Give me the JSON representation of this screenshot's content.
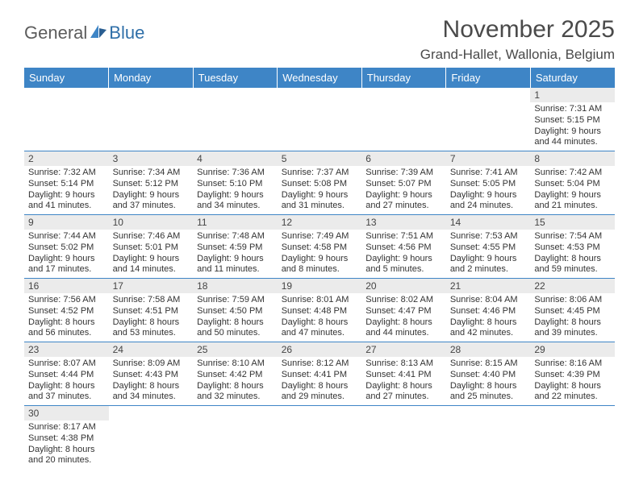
{
  "logo": {
    "part1": "General",
    "part2": "Blue"
  },
  "header": {
    "month_title": "November 2025",
    "location": "Grand-Hallet, Wallonia, Belgium"
  },
  "day_labels": [
    "Sunday",
    "Monday",
    "Tuesday",
    "Wednesday",
    "Thursday",
    "Friday",
    "Saturday"
  ],
  "colors": {
    "header_bg": "#3e85c6",
    "header_fg": "#ffffff",
    "daynum_bg": "#ebebeb",
    "row_border": "#3e85c6",
    "text": "#333333"
  },
  "weeks": [
    [
      null,
      null,
      null,
      null,
      null,
      null,
      {
        "n": "1",
        "sr": "7:31 AM",
        "ss": "5:15 PM",
        "dl": "9 hours and 44 minutes."
      }
    ],
    [
      {
        "n": "2",
        "sr": "7:32 AM",
        "ss": "5:14 PM",
        "dl": "9 hours and 41 minutes."
      },
      {
        "n": "3",
        "sr": "7:34 AM",
        "ss": "5:12 PM",
        "dl": "9 hours and 37 minutes."
      },
      {
        "n": "4",
        "sr": "7:36 AM",
        "ss": "5:10 PM",
        "dl": "9 hours and 34 minutes."
      },
      {
        "n": "5",
        "sr": "7:37 AM",
        "ss": "5:08 PM",
        "dl": "9 hours and 31 minutes."
      },
      {
        "n": "6",
        "sr": "7:39 AM",
        "ss": "5:07 PM",
        "dl": "9 hours and 27 minutes."
      },
      {
        "n": "7",
        "sr": "7:41 AM",
        "ss": "5:05 PM",
        "dl": "9 hours and 24 minutes."
      },
      {
        "n": "8",
        "sr": "7:42 AM",
        "ss": "5:04 PM",
        "dl": "9 hours and 21 minutes."
      }
    ],
    [
      {
        "n": "9",
        "sr": "7:44 AM",
        "ss": "5:02 PM",
        "dl": "9 hours and 17 minutes."
      },
      {
        "n": "10",
        "sr": "7:46 AM",
        "ss": "5:01 PM",
        "dl": "9 hours and 14 minutes."
      },
      {
        "n": "11",
        "sr": "7:48 AM",
        "ss": "4:59 PM",
        "dl": "9 hours and 11 minutes."
      },
      {
        "n": "12",
        "sr": "7:49 AM",
        "ss": "4:58 PM",
        "dl": "9 hours and 8 minutes."
      },
      {
        "n": "13",
        "sr": "7:51 AM",
        "ss": "4:56 PM",
        "dl": "9 hours and 5 minutes."
      },
      {
        "n": "14",
        "sr": "7:53 AM",
        "ss": "4:55 PM",
        "dl": "9 hours and 2 minutes."
      },
      {
        "n": "15",
        "sr": "7:54 AM",
        "ss": "4:53 PM",
        "dl": "8 hours and 59 minutes."
      }
    ],
    [
      {
        "n": "16",
        "sr": "7:56 AM",
        "ss": "4:52 PM",
        "dl": "8 hours and 56 minutes."
      },
      {
        "n": "17",
        "sr": "7:58 AM",
        "ss": "4:51 PM",
        "dl": "8 hours and 53 minutes."
      },
      {
        "n": "18",
        "sr": "7:59 AM",
        "ss": "4:50 PM",
        "dl": "8 hours and 50 minutes."
      },
      {
        "n": "19",
        "sr": "8:01 AM",
        "ss": "4:48 PM",
        "dl": "8 hours and 47 minutes."
      },
      {
        "n": "20",
        "sr": "8:02 AM",
        "ss": "4:47 PM",
        "dl": "8 hours and 44 minutes."
      },
      {
        "n": "21",
        "sr": "8:04 AM",
        "ss": "4:46 PM",
        "dl": "8 hours and 42 minutes."
      },
      {
        "n": "22",
        "sr": "8:06 AM",
        "ss": "4:45 PM",
        "dl": "8 hours and 39 minutes."
      }
    ],
    [
      {
        "n": "23",
        "sr": "8:07 AM",
        "ss": "4:44 PM",
        "dl": "8 hours and 37 minutes."
      },
      {
        "n": "24",
        "sr": "8:09 AM",
        "ss": "4:43 PM",
        "dl": "8 hours and 34 minutes."
      },
      {
        "n": "25",
        "sr": "8:10 AM",
        "ss": "4:42 PM",
        "dl": "8 hours and 32 minutes."
      },
      {
        "n": "26",
        "sr": "8:12 AM",
        "ss": "4:41 PM",
        "dl": "8 hours and 29 minutes."
      },
      {
        "n": "27",
        "sr": "8:13 AM",
        "ss": "4:41 PM",
        "dl": "8 hours and 27 minutes."
      },
      {
        "n": "28",
        "sr": "8:15 AM",
        "ss": "4:40 PM",
        "dl": "8 hours and 25 minutes."
      },
      {
        "n": "29",
        "sr": "8:16 AM",
        "ss": "4:39 PM",
        "dl": "8 hours and 22 minutes."
      }
    ],
    [
      {
        "n": "30",
        "sr": "8:17 AM",
        "ss": "4:38 PM",
        "dl": "8 hours and 20 minutes."
      },
      null,
      null,
      null,
      null,
      null,
      null
    ]
  ],
  "labels": {
    "sunrise_prefix": "Sunrise: ",
    "sunset_prefix": "Sunset: ",
    "daylight_prefix": "Daylight: "
  }
}
